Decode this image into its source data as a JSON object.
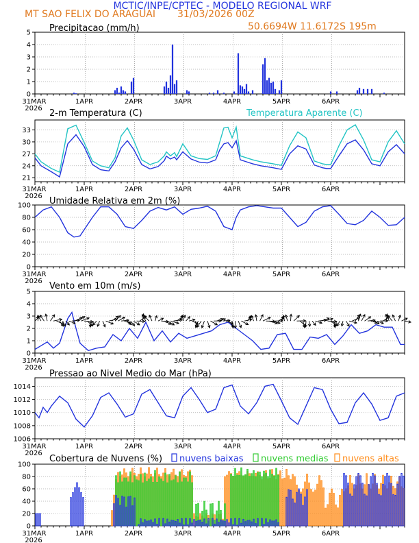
{
  "header": {
    "line1": "MCTIC/INPE/CPTEC - MODELO REGIONAL WRF",
    "location": "MT SAO FELIX DO ARAGUAI",
    "run": "31/03/2026 00Z",
    "coords": "50.6694W 11.6172S 195m"
  },
  "colors": {
    "blue": "#2233dd",
    "cyan": "#22c4c4",
    "green": "#33cc33",
    "orange": "#ff8c1a",
    "header_blue": "#2233dd",
    "header_orange": "#e07a20"
  },
  "xaxis": {
    "first_label": "31MAR",
    "first_year": "2026",
    "days": [
      "1APR",
      "2APR",
      "3APR",
      "4APR",
      "5APR",
      "6APR"
    ]
  },
  "chart_data": [
    {
      "id": "precip",
      "type": "bar",
      "title": "Precipitacao (mm/h)",
      "ylim": [
        0,
        5
      ],
      "yticks": [
        0,
        1,
        2,
        3,
        4,
        5
      ],
      "x": [
        19,
        20,
        39,
        40,
        41,
        42,
        43,
        44,
        47,
        48,
        63,
        64,
        65,
        66,
        67,
        68,
        69,
        74,
        75,
        85,
        87,
        89,
        92,
        97,
        99,
        100,
        101,
        102,
        103,
        104,
        106,
        111,
        112,
        113,
        114,
        115,
        116,
        117,
        119,
        120,
        144,
        147,
        157,
        158,
        160,
        162,
        164,
        170
      ],
      "values": [
        0.1,
        0.05,
        0.3,
        0.5,
        0.1,
        0.6,
        0.3,
        0.2,
        1.0,
        1.3,
        0.6,
        1.0,
        0.5,
        1.5,
        4.0,
        0.8,
        1.1,
        0.3,
        0.2,
        0.1,
        0.1,
        0.3,
        0.1,
        0.2,
        3.3,
        0.7,
        0.6,
        0.4,
        0.8,
        0.2,
        0.3,
        2.4,
        2.9,
        1.1,
        1.3,
        0.9,
        1.0,
        0.4,
        0.3,
        1.1,
        0.2,
        0.2,
        0.3,
        0.5,
        0.4,
        0.4,
        0.4,
        0.1
      ]
    },
    {
      "id": "temp",
      "type": "line",
      "title": "2-m Temperatura (C)",
      "title2": "Temperatura Aparente (C)",
      "ylim": [
        20,
        35.5
      ],
      "yticks": [
        21,
        24,
        27,
        30,
        33
      ],
      "series": [
        {
          "name": "Temperatura 2m",
          "color": "blue",
          "x": [
            0,
            3,
            8,
            12,
            16,
            20,
            24,
            28,
            32,
            36,
            39,
            42,
            45,
            48,
            52,
            56,
            60,
            63,
            64,
            66,
            68,
            69,
            72,
            76,
            80,
            84,
            88,
            90,
            92,
            94,
            96,
            98,
            100,
            103,
            106,
            110,
            116,
            120,
            124,
            128,
            132,
            136,
            140,
            142,
            144,
            148,
            152,
            156,
            160,
            164,
            168,
            172,
            176,
            180
          ],
          "values": [
            26.0,
            24.0,
            22.5,
            21.2,
            29.5,
            31.8,
            28.8,
            24.3,
            23.0,
            22.7,
            25.0,
            28.5,
            30.3,
            28.2,
            24.3,
            23.2,
            23.8,
            25.3,
            26.4,
            25.7,
            26.2,
            25.5,
            27.5,
            25.7,
            24.9,
            24.7,
            25.5,
            28.0,
            29.5,
            29.8,
            28.5,
            30.3,
            25.5,
            25.0,
            24.5,
            24.0,
            23.5,
            23.1,
            27.0,
            29.0,
            28.2,
            24.2,
            23.5,
            23.3,
            23.3,
            26.5,
            29.5,
            30.5,
            28.0,
            24.5,
            24.0,
            27.5,
            29.3,
            27.0
          ]
        },
        {
          "name": "Temperatura Aparente",
          "color": "cyan",
          "x": [
            0,
            3,
            8,
            12,
            16,
            20,
            24,
            28,
            32,
            36,
            39,
            42,
            45,
            48,
            52,
            56,
            60,
            63,
            64,
            66,
            68,
            69,
            72,
            76,
            80,
            84,
            88,
            90,
            92,
            94,
            96,
            98,
            100,
            103,
            106,
            110,
            116,
            120,
            124,
            128,
            132,
            136,
            140,
            142,
            144,
            148,
            152,
            156,
            160,
            164,
            168,
            172,
            176,
            180
          ],
          "values": [
            27.0,
            25.0,
            23.3,
            22.4,
            33.3,
            34.2,
            29.8,
            25.2,
            24.0,
            23.5,
            26.0,
            31.5,
            33.5,
            30.5,
            25.5,
            24.3,
            25.0,
            26.5,
            27.5,
            26.5,
            27.3,
            26.3,
            29.5,
            26.5,
            25.8,
            25.6,
            26.5,
            30.0,
            33.5,
            33.7,
            31.0,
            33.7,
            26.5,
            26.0,
            25.5,
            25.0,
            24.5,
            24.1,
            29.0,
            32.5,
            31.0,
            25.2,
            24.5,
            24.3,
            24.3,
            29.0,
            33.0,
            34.3,
            30.5,
            25.5,
            25.0,
            30.0,
            32.8,
            29.5
          ]
        }
      ]
    },
    {
      "id": "rh",
      "type": "line",
      "title": "Umidade Relativa em 2m (%)",
      "ylim": [
        0,
        100
      ],
      "yticks": [
        0,
        20,
        40,
        60,
        80,
        100
      ],
      "series": [
        {
          "name": "Umidade Relativa",
          "color": "blue",
          "x": [
            0,
            4,
            8,
            12,
            16,
            19,
            22,
            28,
            32,
            36,
            40,
            44,
            48,
            52,
            56,
            60,
            64,
            68,
            72,
            76,
            80,
            84,
            88,
            92,
            96,
            98,
            100,
            104,
            108,
            112,
            116,
            120,
            124,
            128,
            132,
            136,
            140,
            144,
            148,
            152,
            156,
            160,
            164,
            168,
            172,
            176,
            180
          ],
          "values": [
            80,
            92,
            97,
            80,
            55,
            48,
            50,
            80,
            97,
            97,
            85,
            65,
            62,
            75,
            90,
            96,
            92,
            97,
            85,
            93,
            95,
            98,
            90,
            65,
            60,
            80,
            92,
            97,
            99,
            97,
            95,
            95,
            80,
            65,
            72,
            90,
            97,
            99,
            85,
            70,
            68,
            75,
            90,
            80,
            67,
            68,
            80
          ]
        }
      ]
    },
    {
      "id": "wind",
      "type": "line",
      "title": "Vento em 10m (m/s)",
      "ylim": [
        0,
        5
      ],
      "yticks": [
        0,
        1,
        2,
        3,
        4,
        5
      ],
      "barbs_level": 2.6,
      "series": [
        {
          "name": "Velocidade do vento",
          "color": "blue",
          "x": [
            0,
            3,
            6,
            9,
            12,
            16,
            18,
            20,
            22,
            26,
            30,
            34,
            38,
            42,
            46,
            50,
            54,
            58,
            62,
            66,
            70,
            74,
            78,
            82,
            86,
            90,
            94,
            98,
            102,
            106,
            110,
            114,
            118,
            122,
            126,
            130,
            134,
            138,
            142,
            146,
            150,
            154,
            158,
            162,
            166,
            170,
            174,
            178,
            180
          ],
          "values": [
            0.3,
            0.6,
            0.9,
            0.4,
            0.8,
            2.8,
            3.3,
            2.0,
            0.8,
            0.2,
            0.4,
            0.5,
            1.5,
            1.0,
            2.0,
            1.2,
            2.5,
            1.0,
            1.8,
            0.9,
            1.6,
            1.2,
            1.4,
            1.6,
            1.8,
            2.3,
            2.5,
            2.0,
            1.5,
            1.0,
            0.3,
            0.4,
            1.5,
            1.6,
            0.3,
            0.3,
            1.3,
            1.2,
            1.5,
            0.7,
            1.4,
            2.3,
            1.6,
            1.8,
            2.3,
            2.1,
            2.1,
            0.7,
            0.7
          ]
        }
      ]
    },
    {
      "id": "mslp",
      "type": "line",
      "title": "Pressao ao Nivel Medio do Mar (hPa)",
      "ylim": [
        1006,
        1015.3
      ],
      "yticks": [
        1006,
        1008,
        1010,
        1012,
        1014
      ],
      "series": [
        {
          "name": "Pressao",
          "color": "blue",
          "x": [
            0,
            2,
            4,
            6,
            8,
            12,
            16,
            20,
            24,
            28,
            32,
            36,
            40,
            44,
            48,
            52,
            56,
            60,
            64,
            68,
            72,
            76,
            80,
            84,
            88,
            92,
            96,
            100,
            104,
            108,
            112,
            116,
            120,
            124,
            128,
            132,
            136,
            140,
            144,
            148,
            152,
            156,
            160,
            164,
            168,
            172,
            176,
            180
          ],
          "values": [
            1010.0,
            1009.2,
            1010.8,
            1010.0,
            1011.0,
            1012.5,
            1011.5,
            1009.0,
            1007.8,
            1009.5,
            1012.3,
            1013.0,
            1011.3,
            1009.3,
            1009.8,
            1012.8,
            1013.5,
            1011.5,
            1009.5,
            1009.2,
            1012.5,
            1013.8,
            1012.0,
            1010.0,
            1010.5,
            1013.8,
            1014.2,
            1011.0,
            1009.8,
            1011.5,
            1014.0,
            1014.3,
            1011.8,
            1009.2,
            1008.2,
            1011.0,
            1013.8,
            1013.5,
            1010.5,
            1008.3,
            1008.5,
            1011.5,
            1013.0,
            1011.3,
            1008.8,
            1009.2,
            1012.5,
            1013.0
          ]
        }
      ]
    },
    {
      "id": "clouds",
      "type": "bar",
      "title": "Cobertura de Nuvens (%)",
      "ylim": [
        0,
        100
      ],
      "yticks": [
        0,
        20,
        40,
        60,
        80,
        100
      ],
      "legend": [
        "nuvens baixas",
        "nuvens medias",
        "nuvens altas"
      ]
    }
  ]
}
